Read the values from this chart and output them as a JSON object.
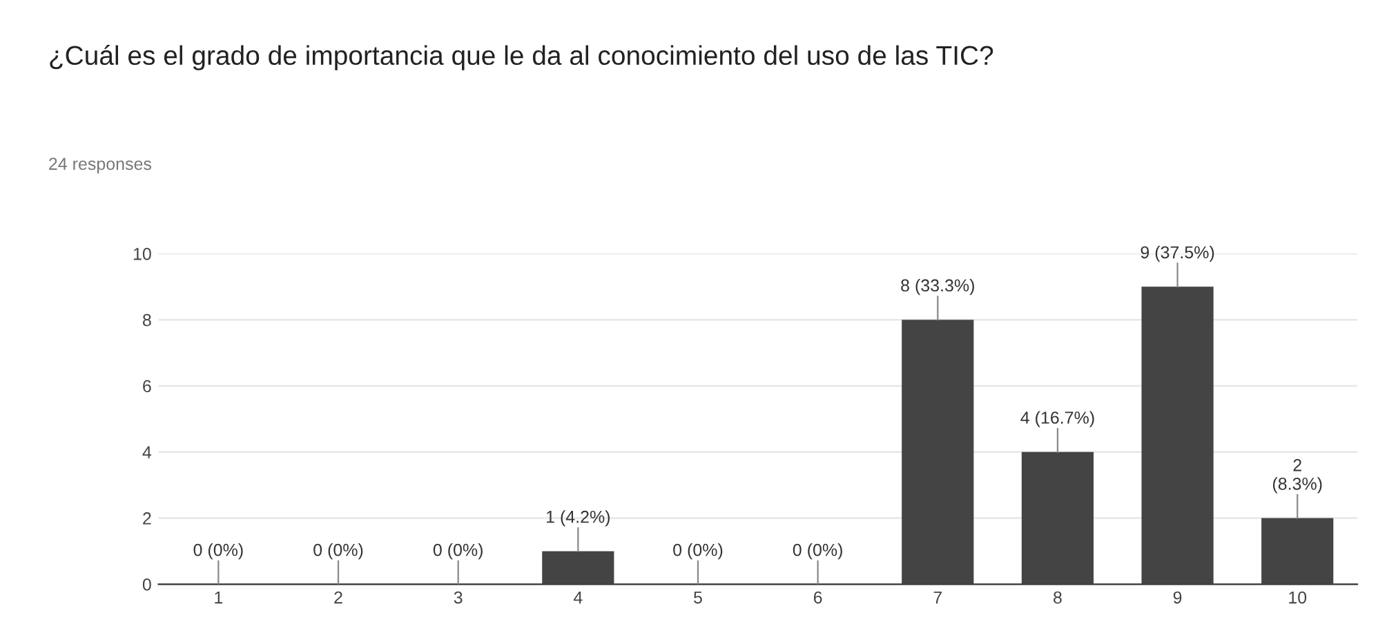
{
  "chart_data": {
    "type": "bar",
    "title": "¿Cuál es el grado de importancia que le da al conocimiento del uso de las TIC?",
    "subtitle": "24 responses",
    "categories": [
      "1",
      "2",
      "3",
      "4",
      "5",
      "6",
      "7",
      "8",
      "9",
      "10"
    ],
    "values": [
      0,
      0,
      0,
      1,
      0,
      0,
      8,
      4,
      9,
      2
    ],
    "value_labels": [
      "0 (0%)",
      "0 (0%)",
      "0 (0%)",
      "1 (4.2%)",
      "0 (0%)",
      "0 (0%)",
      "8 (33.3%)",
      "4 (16.7%)",
      "9 (37.5%)",
      "2\n(8.3%)"
    ],
    "color": "#444444",
    "ylim": [
      0,
      10
    ],
    "yticks": [
      0,
      2,
      4,
      6,
      8,
      10
    ],
    "grid": "y"
  }
}
